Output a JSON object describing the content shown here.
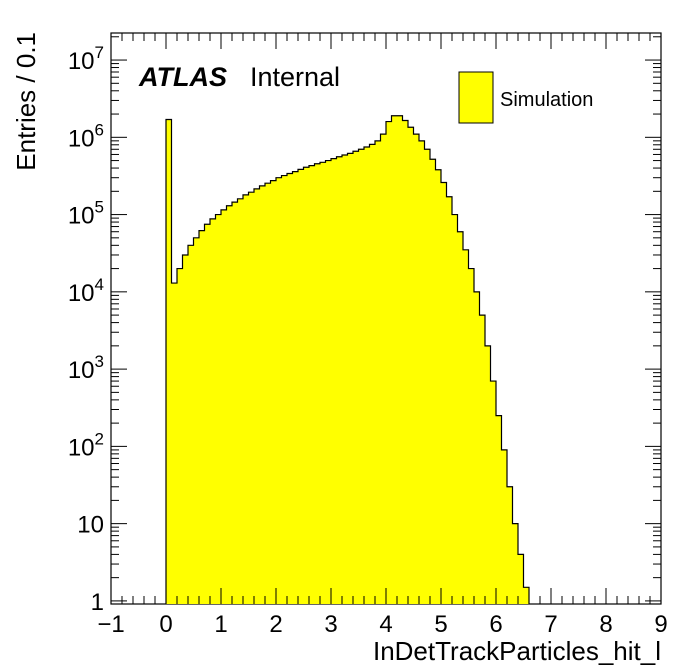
{
  "chart_data": {
    "type": "histogram",
    "xlabel": "InDetTrackParticles_hit_l",
    "ylabel": "Entries / 0.1",
    "xlim": [
      -1,
      9
    ],
    "ylim_log10": [
      -0.04,
      7.35
    ],
    "yscale": "log",
    "x_tick_labels": [
      "−1",
      "0",
      "1",
      "2",
      "3",
      "4",
      "5",
      "6",
      "7",
      "8",
      "9"
    ],
    "y_tick_labels": [
      "1",
      "10",
      "10^2",
      "10^3",
      "10^4",
      "10^5",
      "10^6",
      "10^7"
    ],
    "bin_width": 0.1,
    "bin_start": 0.0,
    "series": [
      {
        "name": "Simulation",
        "color": "#ffff00",
        "edge_color": "#000000",
        "values": [
          1700000,
          13000,
          20000,
          30000,
          40000,
          50000,
          62000,
          75000,
          88000,
          100000,
          115000,
          130000,
          145000,
          160000,
          180000,
          195000,
          215000,
          235000,
          255000,
          275000,
          300000,
          320000,
          340000,
          360000,
          385000,
          410000,
          430000,
          455000,
          475000,
          500000,
          530000,
          560000,
          590000,
          620000,
          660000,
          700000,
          750000,
          810000,
          900000,
          1100000,
          1600000,
          1900000,
          1900000,
          1650000,
          1350000,
          1100000,
          900000,
          700000,
          520000,
          380000,
          260000,
          170000,
          100000,
          60000,
          35000,
          20000,
          10000,
          5000,
          2000,
          700,
          250,
          90,
          30,
          10,
          4,
          1.5
        ]
      }
    ],
    "legend": {
      "entries": [
        "Simulation"
      ],
      "position": "top-right"
    },
    "annotations": {
      "atlas": "ATLAS",
      "tag": "Internal"
    },
    "grid": false
  }
}
